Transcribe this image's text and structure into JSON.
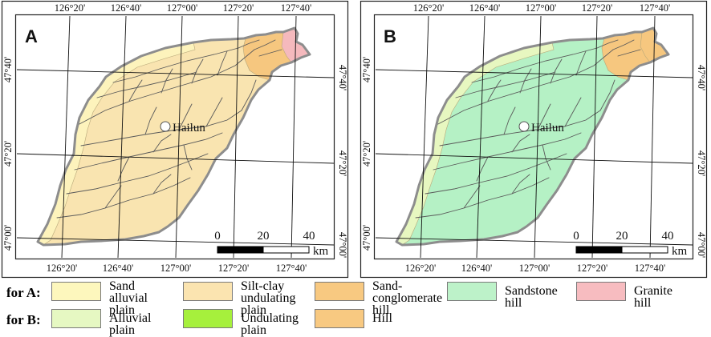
{
  "panels": [
    {
      "id": "A",
      "letter": "A",
      "city": "Hailun",
      "top_lon": [
        "126°20'",
        "126°40'",
        "127°00'",
        "127°20'",
        "127°40'"
      ],
      "bottom_lon": [
        "126°20'",
        "126°40'",
        "127°00'",
        "127°20'",
        "127°40'"
      ],
      "left_lat": [
        "47°40'",
        "47°20'",
        "47°00'"
      ],
      "right_lat": [
        "47°40'",
        "47°20'",
        "47°00'"
      ],
      "scale": {
        "ticks": [
          "0",
          "20",
          "40"
        ],
        "unit": "km"
      },
      "colors": {
        "base": "#f9e4b0",
        "west_strip": "#fdf3bc",
        "northeast": "#f6c77f",
        "far_east": "#f5b9bd",
        "river": "#5a5a5a",
        "outline": "#8d8d8d"
      }
    },
    {
      "id": "B",
      "letter": "B",
      "city": "Hailun",
      "top_lon": [
        "126°20'",
        "126°40'",
        "127°00'",
        "127°20'",
        "127°40'"
      ],
      "bottom_lon": [
        "126°20'",
        "126°40'",
        "127°00'",
        "127°20'",
        "127°40'"
      ],
      "left_lat": [
        "47°40'",
        "47°20'",
        "47°00'"
      ],
      "right_lat": [
        "47°40'",
        "47°20'",
        "47°00'"
      ],
      "scale": {
        "ticks": [
          "0",
          "20",
          "40"
        ],
        "unit": "km"
      },
      "colors": {
        "base": "#b5f1c5",
        "west_strip": "#e7f7c0",
        "northeast": "#f6c77f",
        "far_east": "#f6c77f",
        "river": "#5a5a5a",
        "outline": "#8d8d8d"
      }
    }
  ],
  "legend": {
    "row_a": {
      "label": "for A:",
      "items": [
        {
          "text": "Sand\nalluvial plain",
          "color": "#fdf7bd"
        },
        {
          "text": "Silt-clay\nundulating plain",
          "color": "#fbe4b0"
        },
        {
          "text": "Sand-\nconglomerate hill",
          "color": "#f8c981"
        },
        {
          "text": "Sandstone hill",
          "color": "#bdf2c9"
        },
        {
          "text": "Granite hill",
          "color": "#f7bcc0"
        }
      ]
    },
    "row_b": {
      "label": "for B:",
      "items": [
        {
          "text": "Alluvial plain",
          "color": "#e6f8c2"
        },
        {
          "text": "Undulating plain",
          "color": "#a6f03c"
        },
        {
          "text": "Hill",
          "color": "#f8c981"
        }
      ]
    }
  }
}
